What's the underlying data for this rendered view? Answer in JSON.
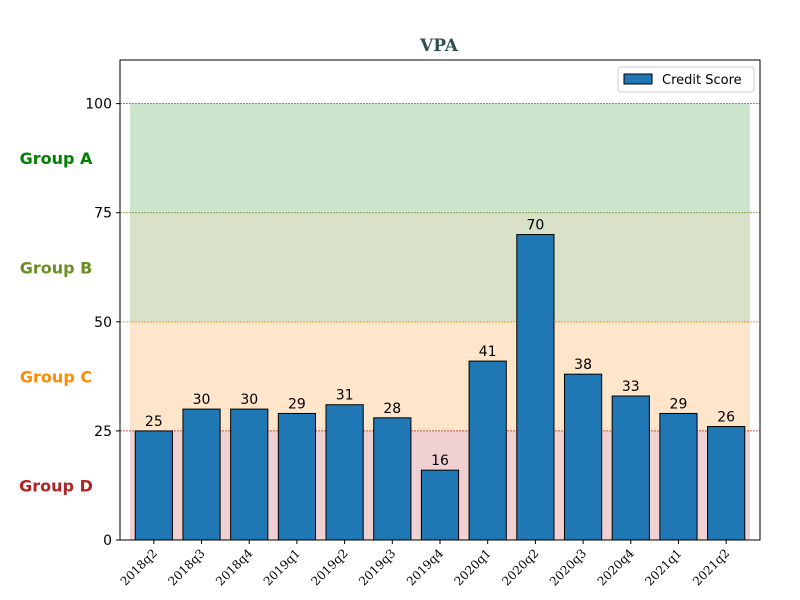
{
  "chart_data": {
    "type": "bar",
    "title": "VPA",
    "categories": [
      "2018q2",
      "2018q3",
      "2018q4",
      "2019q1",
      "2019q2",
      "2019q3",
      "2019q4",
      "2020q1",
      "2020q2",
      "2020q3",
      "2020q4",
      "2021q1",
      "2021q2"
    ],
    "series": [
      {
        "name": "Credit Score",
        "values": [
          25,
          30,
          30,
          29,
          31,
          28,
          16,
          41,
          70,
          38,
          33,
          29,
          26
        ]
      }
    ],
    "ylim": [
      0,
      110
    ],
    "yticks": [
      0,
      25,
      50,
      75,
      100
    ],
    "legend_position": "top-right",
    "bands": [
      {
        "label": "Group A",
        "from": 75,
        "to": 100,
        "fill": "#cde5cd",
        "line": "#2e8b2e",
        "label_color": "#008000"
      },
      {
        "label": "Group B",
        "from": 50,
        "to": 75,
        "fill": "#d9e2c8",
        "line": "#6b8e23",
        "label_color": "#6b8e23"
      },
      {
        "label": "Group C",
        "from": 25,
        "to": 50,
        "fill": "#ffe5c9",
        "line": "#ff8c00",
        "label_color": "#ff8c00"
      },
      {
        "label": "Group D",
        "from": 0,
        "to": 25,
        "fill": "#f0d0d0",
        "line": "#b22222",
        "label_color": "#b22222"
      }
    ],
    "colors": {
      "bar": "#1f77b4",
      "bar_edge": "#000000",
      "title": "#2f4f4f"
    }
  }
}
